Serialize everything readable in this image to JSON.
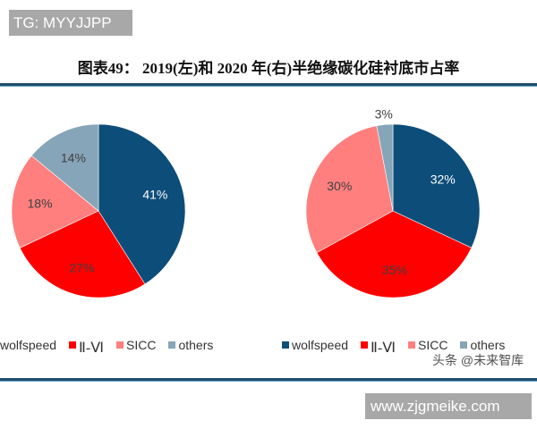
{
  "watermark_top": "TG: MYYJJPP",
  "title": "图表49：  2019(左)和 2020 年(右)半绝缘碳化硅衬底市占率",
  "watermark_toutiao": "头条 @未来智库",
  "watermark_bottom": "www.zjgmeike.com",
  "colors": {
    "wolfspeed": "#0d4d7a",
    "II-VI": "#ff0000",
    "SICC": "#ff7f7f",
    "others": "#87a5b8"
  },
  "legend_left": [
    {
      "label": "wolfspeed"
    },
    {
      "label": "Ⅱ-Ⅵ"
    },
    {
      "label": "SICC"
    },
    {
      "label": "others"
    }
  ],
  "legend_right": [
    {
      "label": "wolfspeed"
    },
    {
      "label": "Ⅱ-Ⅵ"
    },
    {
      "label": "SICC"
    },
    {
      "label": "others"
    }
  ],
  "chart_data": [
    {
      "type": "pie",
      "title": "2019 (左)",
      "categories": [
        "wolfspeed",
        "II-VI",
        "SICC",
        "others"
      ],
      "values": [
        41,
        27,
        18,
        14
      ],
      "labels": [
        "41%",
        "27%",
        "18%",
        "14%"
      ],
      "legend_position": "bottom"
    },
    {
      "type": "pie",
      "title": "2020 (右)",
      "categories": [
        "wolfspeed",
        "II-VI",
        "SICC",
        "others"
      ],
      "values": [
        32,
        35,
        30,
        3
      ],
      "labels": [
        "32%",
        "35%",
        "30%",
        "3%"
      ],
      "legend_position": "bottom"
    }
  ]
}
